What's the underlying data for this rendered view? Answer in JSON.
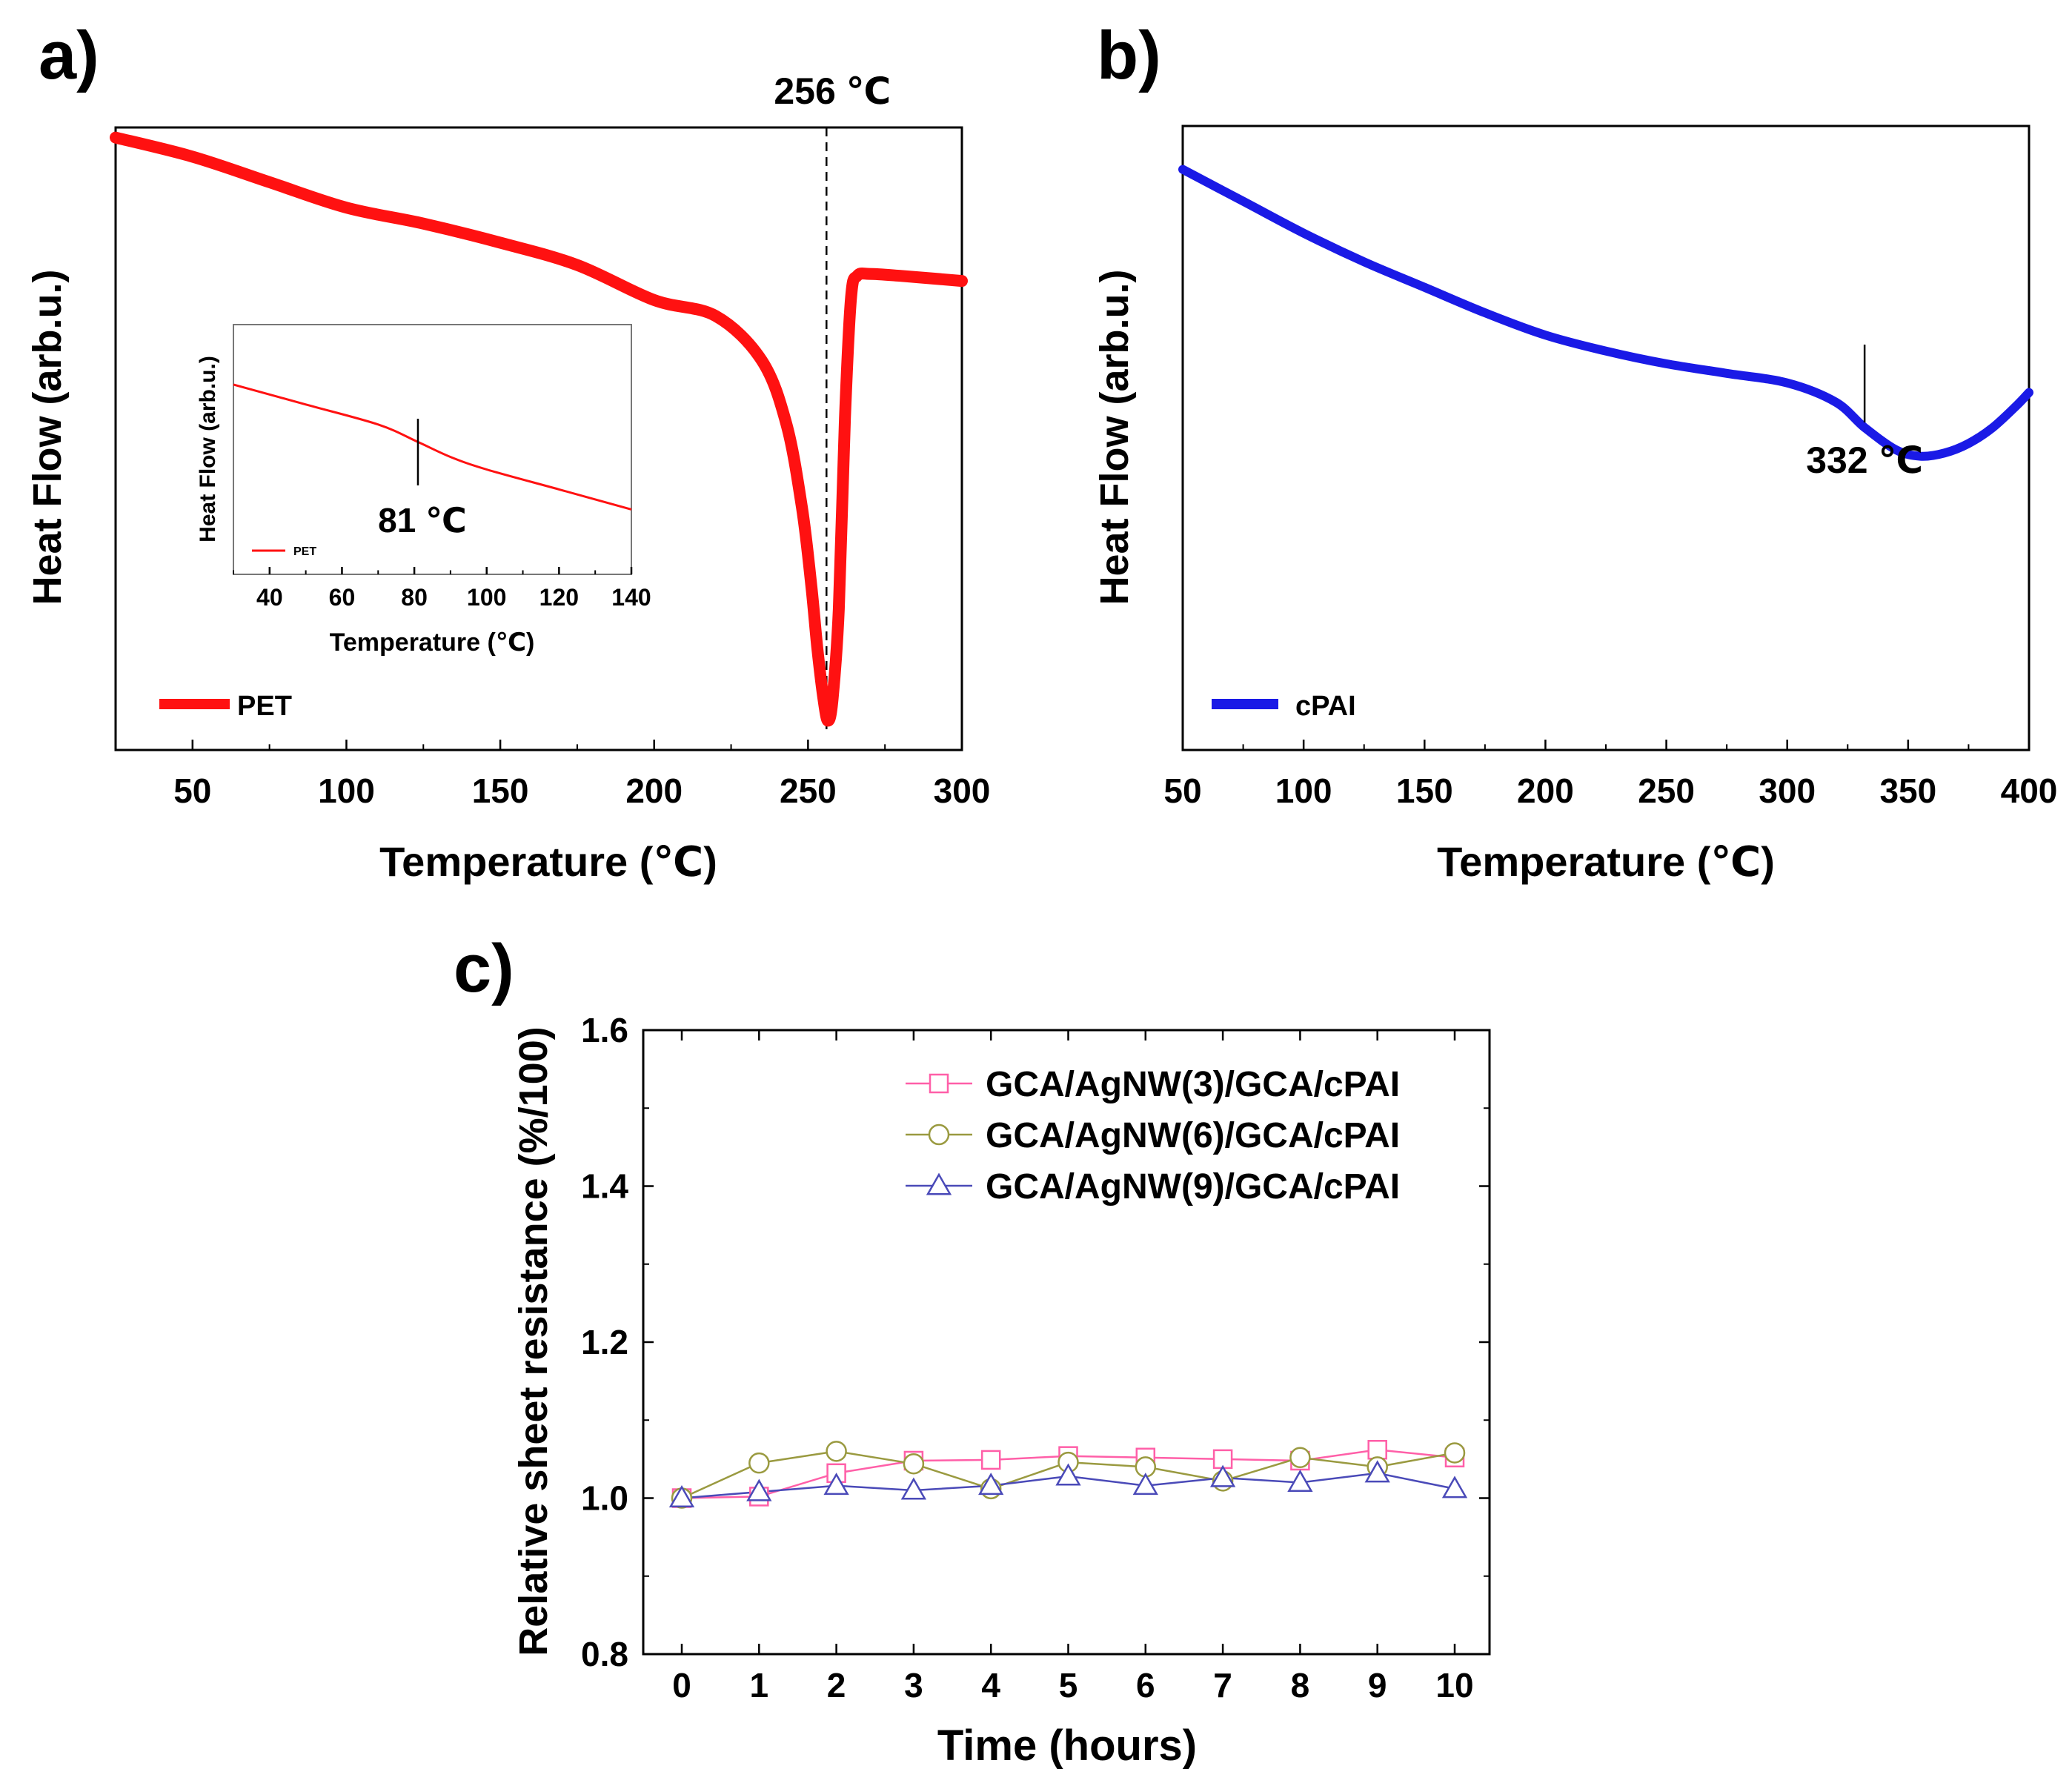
{
  "colors": {
    "pet": "#ff1111",
    "cpai": "#1a1ae6",
    "s3": "#ff5fa8",
    "s6": "#9a9a40",
    "s9": "#4a4ab8"
  },
  "chart_data": [
    {
      "id": "a",
      "panel_label": "a)",
      "type": "line",
      "title": "",
      "xlabel": "Temperature (℃)",
      "ylabel": "Heat Flow (arb.u.)",
      "xlim": [
        25,
        300
      ],
      "ylim": [
        0,
        100
      ],
      "xticks": [
        50,
        100,
        150,
        200,
        250,
        300
      ],
      "ytick_labels": false,
      "legend": {
        "label": "PET",
        "placement": "bottom-left"
      },
      "annotations": [
        {
          "text": "256 ℃",
          "x": 256,
          "style": "dashed-vertical-line"
        }
      ],
      "series": [
        {
          "name": "PET",
          "x": [
            25,
            50,
            75,
            100,
            125,
            150,
            175,
            200,
            220,
            235,
            243,
            248,
            251,
            253,
            255,
            256.5,
            258,
            260,
            262,
            264,
            266,
            270,
            280,
            300
          ],
          "y": [
            94,
            91,
            87,
            83,
            80.5,
            77.5,
            74,
            68.5,
            66,
            59,
            49,
            36,
            24,
            14,
            6,
            2.5,
            6,
            20,
            50,
            69,
            72.3,
            72.6,
            72.3,
            71.5
          ]
        }
      ],
      "inset": {
        "type": "line",
        "xlabel": "Temperature (℃)",
        "ylabel": "Heat Flow (arb.u.)",
        "xlim": [
          30,
          140
        ],
        "ylim": [
          0,
          100
        ],
        "xticks": [
          40,
          60,
          80,
          100,
          120,
          140
        ],
        "legend": {
          "label": "PET",
          "placement": "bottom-left"
        },
        "annotations": [
          {
            "text": "81 ℃",
            "x": 81
          }
        ],
        "series": [
          {
            "name": "PET",
            "x": [
              30,
              50,
              70,
              81,
              90,
              100,
              120,
              140
            ],
            "y": [
              76,
              68,
              60,
              53,
              47,
              42,
              34,
              26
            ]
          }
        ]
      }
    },
    {
      "id": "b",
      "panel_label": "b)",
      "type": "line",
      "title": "",
      "xlabel": "Temperature (℃)",
      "ylabel": "Heat Flow (arb.u.)",
      "xlim": [
        50,
        400
      ],
      "ylim": [
        0,
        100
      ],
      "xticks": [
        50,
        100,
        150,
        200,
        250,
        300,
        350,
        400
      ],
      "ytick_labels": false,
      "legend": {
        "label": "cPAI",
        "placement": "bottom-left"
      },
      "annotations": [
        {
          "text": "332 ℃",
          "x": 332
        }
      ],
      "series": [
        {
          "name": "cPAI",
          "x": [
            50,
            75,
            100,
            125,
            150,
            175,
            200,
            225,
            250,
            275,
            300,
            320,
            332,
            345,
            355,
            365,
            375,
            385,
            395,
            400
          ],
          "y": [
            89,
            84,
            79,
            74.5,
            70.5,
            66.5,
            63,
            60.5,
            58.5,
            57,
            55.5,
            52.5,
            48.5,
            45,
            44,
            44.5,
            46,
            48.5,
            52,
            54
          ]
        }
      ]
    },
    {
      "id": "c",
      "panel_label": "c)",
      "type": "line",
      "title": "",
      "xlabel": "Time (hours)",
      "ylabel": "Relative sheet resistance (%/100)",
      "xlim": [
        -0.5,
        10.5
      ],
      "ylim": [
        0.8,
        1.6
      ],
      "xticks": [
        0,
        1,
        2,
        3,
        4,
        5,
        6,
        7,
        8,
        9,
        10
      ],
      "yticks": [
        "0.8",
        "1.0",
        "1.2",
        "1.4",
        "1.6"
      ],
      "legend": {
        "placement": "top-right"
      },
      "categories": [
        0,
        1,
        2,
        3,
        4,
        5,
        6,
        7,
        8,
        9,
        10
      ],
      "series": [
        {
          "name": "GCA/AgNW(3)/GCA/cPAI",
          "marker": "square",
          "values": [
            1.0,
            1.002,
            1.032,
            1.048,
            1.049,
            1.054,
            1.052,
            1.05,
            1.048,
            1.062,
            1.052
          ]
        },
        {
          "name": "GCA/AgNW(6)/GCA/cPAI",
          "marker": "circle",
          "values": [
            1.0,
            1.045,
            1.06,
            1.044,
            1.012,
            1.046,
            1.04,
            1.022,
            1.052,
            1.04,
            1.058
          ]
        },
        {
          "name": "GCA/AgNW(9)/GCA/cPAI",
          "marker": "triangle",
          "values": [
            1.0,
            1.008,
            1.016,
            1.01,
            1.016,
            1.028,
            1.016,
            1.026,
            1.02,
            1.032,
            1.012
          ]
        }
      ]
    }
  ]
}
